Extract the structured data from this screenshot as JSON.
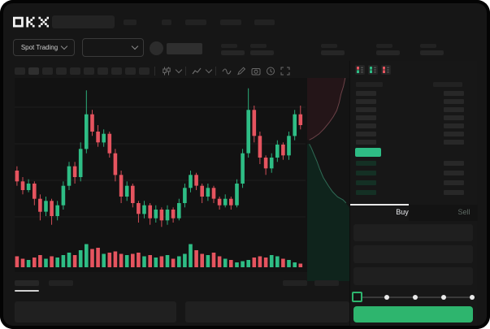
{
  "app": {
    "name": "OKX trading terminal"
  },
  "colors": {
    "green": "#2ebd85",
    "red": "#e5545f",
    "buy_button_green": "#2eb56e",
    "window_bg": "#161616",
    "chart_bg": "#121212",
    "bid_tint": "#143024",
    "skeleton": "#262626"
  },
  "header": {
    "logo_text": "OKX",
    "nav_placeholder_widths": [
      16,
      12,
      26,
      26,
      25
    ]
  },
  "market_bar": {
    "market_type": "Spot Trading",
    "pair_selector_value": "",
    "stat_pair_count": 5
  },
  "toolbar": {
    "interval_button_count": 10,
    "active_interval_index": 1,
    "icons": [
      "candles-icon",
      "chevron-down-icon",
      "indicators-icon",
      "chevron-down-icon",
      "line-tool-icon",
      "pencil-icon",
      "camera-icon",
      "clock-icon",
      "fullscreen-icon"
    ]
  },
  "chart_data": {
    "type": "candlestick",
    "title": "",
    "xlabel": "",
    "ylabel": "",
    "ylim": [
      30,
      102
    ],
    "grid": "horizontal-faint",
    "note_axis_labels_visible": false,
    "candles_ohlc": [
      [
        60,
        62,
        53,
        55
      ],
      [
        55,
        57,
        49,
        51
      ],
      [
        51,
        56,
        50,
        54
      ],
      [
        54,
        55,
        44,
        47
      ],
      [
        47,
        49,
        37,
        41
      ],
      [
        41,
        48,
        39,
        46
      ],
      [
        46,
        47,
        35,
        39
      ],
      [
        39,
        46,
        37,
        44
      ],
      [
        44,
        55,
        42,
        53
      ],
      [
        53,
        64,
        51,
        62
      ],
      [
        62,
        64,
        54,
        57
      ],
      [
        57,
        73,
        55,
        70
      ],
      [
        70,
        97,
        68,
        86
      ],
      [
        86,
        88,
        76,
        78
      ],
      [
        78,
        81,
        71,
        73
      ],
      [
        73,
        79,
        71,
        77
      ],
      [
        77,
        78,
        66,
        68
      ],
      [
        68,
        70,
        55,
        58
      ],
      [
        58,
        60,
        45,
        48
      ],
      [
        48,
        55,
        46,
        53
      ],
      [
        53,
        54,
        43,
        45
      ],
      [
        45,
        46,
        36,
        40
      ],
      [
        40,
        46,
        38,
        44
      ],
      [
        44,
        45,
        35,
        38
      ],
      [
        38,
        44,
        36,
        42
      ],
      [
        42,
        43,
        34,
        37
      ],
      [
        37,
        44,
        35,
        42
      ],
      [
        42,
        43,
        36,
        38
      ],
      [
        38,
        47,
        37,
        45
      ],
      [
        45,
        54,
        43,
        52
      ],
      [
        52,
        60,
        50,
        58
      ],
      [
        58,
        59,
        51,
        53
      ],
      [
        53,
        54,
        45,
        48
      ],
      [
        48,
        54,
        46,
        52
      ],
      [
        52,
        53,
        45,
        47
      ],
      [
        47,
        48,
        42,
        44
      ],
      [
        44,
        49,
        43,
        47
      ],
      [
        47,
        48,
        42,
        44
      ],
      [
        44,
        56,
        43,
        54
      ],
      [
        54,
        70,
        52,
        68
      ],
      [
        68,
        98,
        66,
        88
      ],
      [
        88,
        90,
        73,
        76
      ],
      [
        76,
        78,
        63,
        66
      ],
      [
        66,
        67,
        58,
        61
      ],
      [
        61,
        68,
        59,
        66
      ],
      [
        66,
        74,
        64,
        72
      ],
      [
        72,
        73,
        65,
        67
      ],
      [
        67,
        78,
        65,
        76
      ],
      [
        76,
        88,
        74,
        86
      ],
      [
        86,
        90,
        79,
        81
      ]
    ],
    "volume": [
      0.45,
      0.35,
      0.3,
      0.4,
      0.5,
      0.35,
      0.45,
      0.4,
      0.5,
      0.6,
      0.5,
      0.7,
      0.95,
      0.75,
      0.8,
      0.55,
      0.6,
      0.65,
      0.55,
      0.5,
      0.55,
      0.6,
      0.45,
      0.5,
      0.4,
      0.45,
      0.5,
      0.35,
      0.45,
      0.55,
      0.95,
      0.7,
      0.55,
      0.5,
      0.6,
      0.45,
      0.35,
      0.3,
      0.2,
      0.25,
      0.3,
      0.4,
      0.45,
      0.4,
      0.5,
      0.45,
      0.35,
      0.3,
      0.2,
      0.15
    ],
    "depth": {
      "asks_curve": [
        [
          0.9,
          0.0
        ],
        [
          0.86,
          0.04
        ],
        [
          0.8,
          0.08
        ],
        [
          0.76,
          0.12
        ],
        [
          0.7,
          0.16
        ],
        [
          0.62,
          0.19
        ],
        [
          0.52,
          0.22
        ],
        [
          0.4,
          0.25
        ],
        [
          0.28,
          0.275
        ],
        [
          0.14,
          0.295
        ],
        [
          0.05,
          0.305
        ]
      ],
      "bids_curve": [
        [
          0.05,
          0.325
        ],
        [
          0.1,
          0.345
        ],
        [
          0.16,
          0.375
        ],
        [
          0.23,
          0.41
        ],
        [
          0.3,
          0.45
        ],
        [
          0.38,
          0.49
        ],
        [
          0.5,
          0.53
        ],
        [
          0.6,
          0.56
        ],
        [
          0.72,
          0.585
        ],
        [
          0.85,
          0.6
        ],
        [
          0.92,
          0.615
        ]
      ]
    }
  },
  "orderbook": {
    "view_icons": [
      "book-combined-icon",
      "book-bids-icon",
      "book-asks-icon"
    ],
    "header_columns": 2,
    "ask_row_count": 7,
    "bid_row_count": 4,
    "last_price_highlight": "green"
  },
  "trade_panel": {
    "buy_label": "Buy",
    "sell_label": "Sell",
    "active_tab": "Buy",
    "input_count": 3,
    "slider_stop_count": 5,
    "slider_value_index": 0,
    "submit_button_label": ""
  },
  "bottom_bar": {
    "tab_count": 2,
    "active_tab_index": 0,
    "right_bar_count": 2,
    "panel_count": 2
  }
}
